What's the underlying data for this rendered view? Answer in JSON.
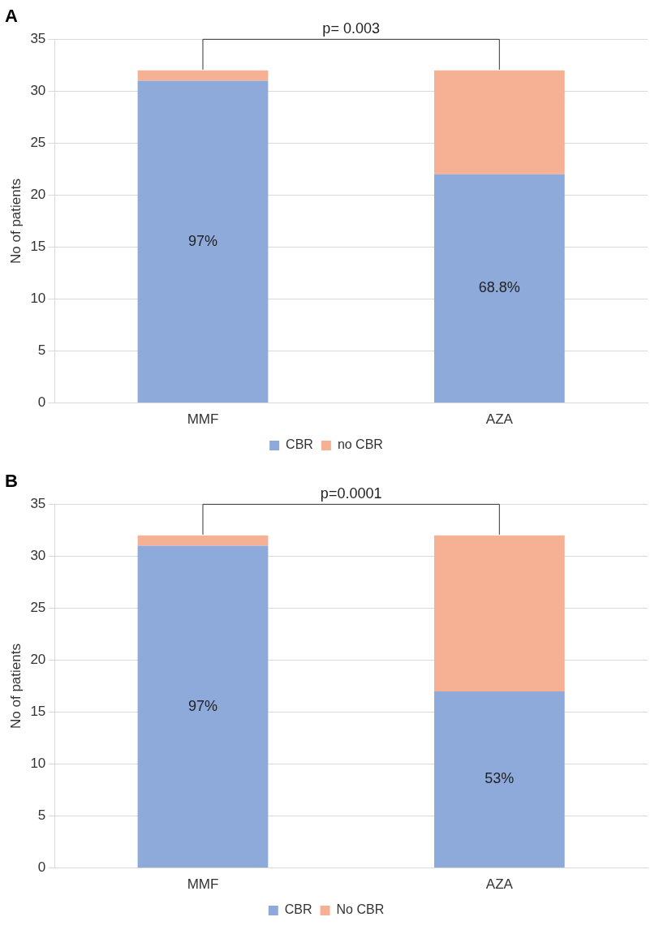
{
  "chart_data": [
    {
      "type": "bar",
      "title": "A",
      "y_label": "No of patients",
      "categories": [
        "MMF",
        "AZA"
      ],
      "series": [
        {
          "name": "CBR",
          "color": "#8eaadb",
          "values": [
            31,
            22
          ]
        },
        {
          "name": "no CBR",
          "color": "#f6b093",
          "values": [
            1,
            10
          ]
        }
      ],
      "stacked": true,
      "grid": true,
      "legend": "bottom",
      "ylim": [
        0,
        35
      ],
      "yticks": [
        0,
        5,
        10,
        15,
        20,
        25,
        30,
        35
      ],
      "annotations": [
        {
          "text": "97%",
          "category": "MMF"
        },
        {
          "text": "68.8%",
          "category": "AZA"
        },
        {
          "text": "p= 0.003",
          "categories": [
            "MMF",
            "AZA"
          ]
        }
      ]
    },
    {
      "type": "bar",
      "title": "B",
      "y_label": "No of patients",
      "categories": [
        "MMF",
        "AZA"
      ],
      "series": [
        {
          "name": "CBR",
          "color": "#8eaadb",
          "values": [
            31,
            17
          ]
        },
        {
          "name": "No CBR",
          "color": "#f6b093",
          "values": [
            1,
            15
          ]
        }
      ],
      "stacked": true,
      "grid": true,
      "legend": "bottom",
      "ylim": [
        0,
        35
      ],
      "yticks": [
        0,
        5,
        10,
        15,
        20,
        25,
        30,
        35
      ],
      "annotations": [
        {
          "text": "97%",
          "category": "MMF"
        },
        {
          "text": "53%",
          "category": "AZA"
        },
        {
          "text": "p=0.0001",
          "categories": [
            "MMF",
            "AZA"
          ]
        }
      ]
    }
  ]
}
